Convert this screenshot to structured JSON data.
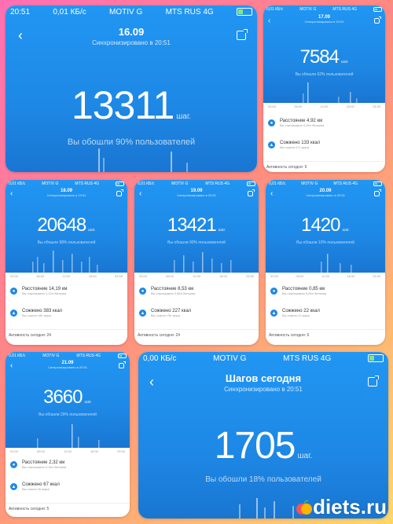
{
  "status": {
    "time": "20:51",
    "speed": "0,01 КБ/с",
    "speed_big": "0,00 КБ/с",
    "carrier1": "MOTIV G",
    "carrier2": "MTS RUS 4G",
    "battery": "39"
  },
  "cards": [
    {
      "date": "16.09",
      "sync": "Синхронизировано в 20:51",
      "steps": "13311",
      "unit": "шаг.",
      "pct": "Вы обошли 90% пользователей"
    },
    {
      "date": "17.09",
      "sync": "Синхронизировано в 20:51",
      "steps": "7584",
      "unit": "шаг.",
      "pct": "Вы обошли 62% пользователей",
      "axis": [
        "00:00",
        "06:00",
        "12:00",
        "18:00",
        "23:59"
      ],
      "distance": "Расстояние 4,92 км",
      "distance_sub": "Вы сэкономили 0,39л бензина",
      "burned": "Сожжено 133 ккал",
      "burned_sub": "Вы сожгли 17г жира",
      "activity": "Активность сегодня: 9"
    },
    {
      "date": "18.09",
      "sync": "Синхронизировано в 20:51",
      "steps": "20648",
      "unit": "шаг.",
      "pct": "Вы обошли 98% пользователей",
      "axis": [
        "00:00",
        "06:00",
        "12:00",
        "18:00",
        "23:59"
      ],
      "distance": "Расстояние 14,19 км",
      "distance_sub": "Вы сэкономили 1,13л бензина",
      "burned": "Сожжено 383 ккал",
      "burned_sub": "Вы сожгли 49г жира",
      "activity": "Активность сегодня: 24"
    },
    {
      "date": "19.09",
      "sync": "Синхронизировано в 20:51",
      "steps": "13421",
      "unit": "шаг.",
      "pct": "Вы обошли 90% пользователей",
      "axis": [
        "00:00",
        "06:00",
        "12:00",
        "18:00",
        "23:59"
      ],
      "distance": "Расстояние 8,53 км",
      "distance_sub": "Вы сэкономили 0,68л бензина",
      "burned": "Сожжено 227 ккал",
      "burned_sub": "Вы сожгли 29г жира",
      "activity": "Активность сегодня: 24"
    },
    {
      "date": "20.09",
      "sync": "Синхронизировано в 20:51",
      "steps": "1420",
      "unit": "шаг.",
      "pct": "Вы обошли 10% пользователей",
      "axis": [
        "00:00",
        "06:00",
        "12:00",
        "18:00",
        "23:59"
      ],
      "distance": "Расстояние 0,85 км",
      "distance_sub": "Вы сэкономили 0,06л бензина",
      "burned": "Сожжено 22 ккал",
      "burned_sub": "Вы сожгли 2г жира",
      "activity": "Активность сегодня: 6"
    },
    {
      "date": "21.09",
      "sync": "Синхронизировано в 20:51",
      "steps": "3660",
      "unit": "шаг.",
      "pct": "Вы обошли 29% пользователей",
      "axis": [
        "00:00",
        "06:00",
        "12:00",
        "18:00",
        "23:59"
      ],
      "distance": "Расстояние 2,32 км",
      "distance_sub": "Вы сэкономили 0,18л бензина",
      "burned": "Сожжено 67 ккал",
      "burned_sub": "Вы сожгли 8г жира",
      "activity": "Активность сегодня: 5"
    },
    {
      "date": "Шагов сегодня",
      "sync": "Синхронизировано в 20:51",
      "steps": "1705",
      "unit": "шаг.",
      "pct": "Вы обошли 18% пользователей"
    }
  ],
  "watermark": {
    "text": "diets.ru"
  },
  "colors": {
    "accent": "#1e88e5",
    "bg_left": "#ff6fb3",
    "bg_right": "#ffd76a"
  }
}
